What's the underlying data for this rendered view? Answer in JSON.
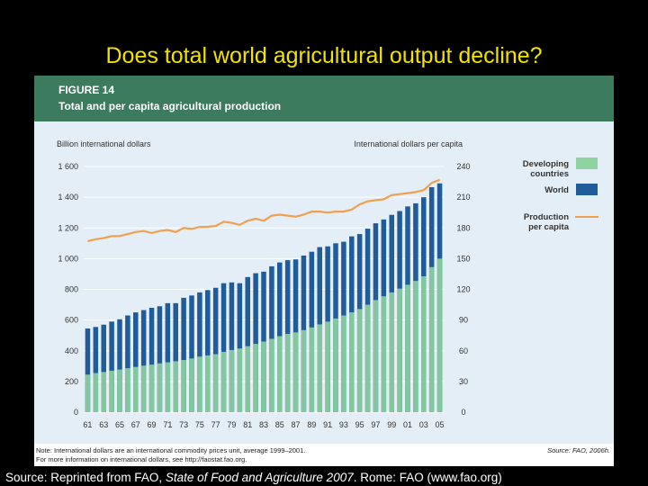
{
  "slide": {
    "title": "Does total world agricultural output decline?",
    "source_prefix": "Source: Reprinted from FAO, ",
    "source_italic": "State of Food and Agriculture 2007",
    "source_suffix": ".  Rome: FAO (www.fao.org)"
  },
  "figure": {
    "number": "FIGURE 14",
    "caption": "Total and per capita agricultural production",
    "note_line1": "Note: International dollars are an international commodity prices unit, average 1999–2001.",
    "note_line2": "For more information on international dollars, see http://faostat.fao.org.",
    "source": "Source: FAO, 2006h."
  },
  "colors": {
    "world": "#1f5c99",
    "developing": "#8fd3a0",
    "per_capita": "#f0a050",
    "plot_bg": "#e3eef6",
    "header": "#3d7b5f"
  },
  "chart_data": {
    "type": "bar",
    "xlabel": "",
    "ylabel_left": "Billion international dollars",
    "ylabel_right": "International dollars per capita",
    "ylim_left": [
      0,
      1600
    ],
    "yticks_left": [
      0,
      200,
      400,
      600,
      800,
      1000,
      1200,
      1400,
      1600
    ],
    "ytick_labels_left": [
      "0",
      "200",
      "400",
      "600",
      "800",
      "1 000",
      "1 200",
      "1 400",
      "1 600"
    ],
    "ylim_right": [
      0,
      240
    ],
    "yticks_right": [
      0,
      30,
      60,
      90,
      120,
      150,
      180,
      210,
      240
    ],
    "ytick_labels_right": [
      "0",
      "30",
      "60",
      "90",
      "120",
      "150",
      "180",
      "210",
      "240"
    ],
    "categories": [
      "1961",
      "1962",
      "1963",
      "1964",
      "1965",
      "1966",
      "1967",
      "1968",
      "1969",
      "1970",
      "1971",
      "1972",
      "1973",
      "1974",
      "1975",
      "1976",
      "1977",
      "1978",
      "1979",
      "1980",
      "1981",
      "1982",
      "1983",
      "1984",
      "1985",
      "1986",
      "1987",
      "1988",
      "1989",
      "1990",
      "1991",
      "1992",
      "1993",
      "1994",
      "1995",
      "1996",
      "1997",
      "1998",
      "1999",
      "2000",
      "2001",
      "2002",
      "2003",
      "2004",
      "2005"
    ],
    "tick_labels": [
      "61",
      "63",
      "65",
      "67",
      "69",
      "71",
      "73",
      "75",
      "77",
      "79",
      "81",
      "83",
      "85",
      "87",
      "89",
      "91",
      "93",
      "95",
      "97",
      "99",
      "01",
      "03",
      "05"
    ],
    "grid": true,
    "legend_position": "right",
    "series": [
      {
        "name": "World",
        "axis": "left",
        "kind": "bar",
        "values": [
          545,
          555,
          570,
          590,
          605,
          630,
          650,
          665,
          680,
          690,
          710,
          710,
          745,
          760,
          780,
          795,
          810,
          840,
          845,
          840,
          880,
          905,
          915,
          950,
          975,
          990,
          995,
          1020,
          1045,
          1075,
          1080,
          1100,
          1110,
          1145,
          1160,
          1195,
          1230,
          1255,
          1285,
          1310,
          1340,
          1360,
          1400,
          1465,
          1490
        ]
      },
      {
        "name": "Developing countries",
        "axis": "left",
        "kind": "bar",
        "values": [
          245,
          255,
          262,
          270,
          278,
          287,
          295,
          303,
          310,
          318,
          325,
          332,
          340,
          350,
          362,
          370,
          378,
          393,
          405,
          415,
          430,
          445,
          460,
          478,
          495,
          510,
          520,
          535,
          552,
          572,
          590,
          610,
          630,
          650,
          672,
          700,
          730,
          755,
          780,
          805,
          830,
          855,
          885,
          945,
          1000
        ]
      },
      {
        "name": "Production per capita",
        "axis": "right",
        "kind": "line",
        "values": [
          167,
          169,
          170,
          172,
          172,
          174,
          176,
          177,
          175,
          177,
          178,
          176,
          180,
          179,
          181,
          181,
          182,
          186,
          185,
          183,
          187,
          189,
          187,
          192,
          193,
          192,
          191,
          193,
          196,
          196,
          195,
          196,
          196,
          198,
          203,
          206,
          207,
          208,
          212,
          213,
          214,
          215,
          217,
          224,
          227
        ]
      }
    ],
    "legend": {
      "developing_line1": "Developing",
      "developing_line2": "countries",
      "world": "World",
      "percap_line1": "Production",
      "percap_line2": "per capita"
    }
  }
}
